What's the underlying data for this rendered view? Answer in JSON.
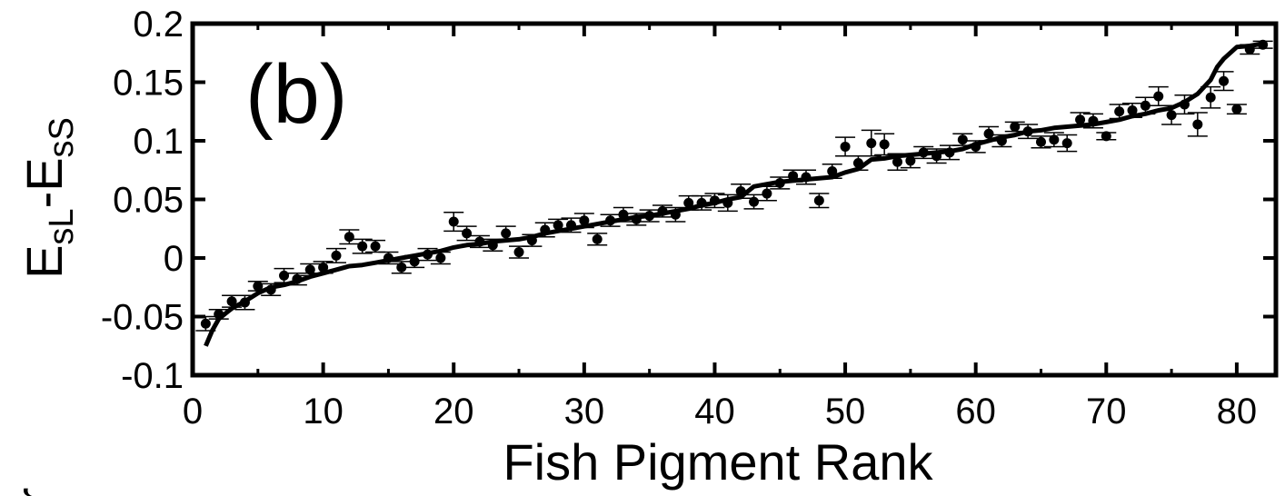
{
  "chart_data": {
    "type": "scatter",
    "panel_label": "(b)",
    "xlabel": "Fish Pigment Rank",
    "ylabel_main": "E",
    "ylabel_sub1": "sL",
    "ylabel_mid": "-E",
    "ylabel_sub2": "sS",
    "xlim": [
      0,
      83
    ],
    "ylim": [
      -0.1,
      0.2
    ],
    "xticks": [
      0,
      10,
      20,
      30,
      40,
      50,
      60,
      70,
      80
    ],
    "xtick_labels": [
      "0",
      "10",
      "20",
      "30",
      "40",
      "50",
      "60",
      "70",
      "80"
    ],
    "yticks": [
      -0.1,
      -0.05,
      0,
      0.05,
      0.1,
      0.15,
      0.2
    ],
    "ytick_labels": [
      "-0.1",
      "-0.05",
      "0",
      "0.05",
      "0.1",
      "0.15",
      "0.2"
    ],
    "grid": false,
    "series": [
      {
        "kind": "points-with-errorbars",
        "x": [
          1,
          2,
          3,
          4,
          5,
          6,
          7,
          8,
          9,
          10,
          11,
          12,
          13,
          14,
          15,
          16,
          17,
          18,
          19,
          20,
          21,
          22,
          23,
          24,
          25,
          26,
          27,
          28,
          29,
          30,
          31,
          32,
          33,
          34,
          35,
          36,
          37,
          38,
          39,
          40,
          41,
          42,
          43,
          44,
          45,
          46,
          47,
          48,
          49,
          50,
          51,
          52,
          53,
          54,
          55,
          56,
          57,
          58,
          59,
          60,
          61,
          62,
          63,
          64,
          65,
          66,
          67,
          68,
          69,
          70,
          71,
          72,
          73,
          74,
          75,
          76,
          77,
          78,
          79,
          80,
          81,
          82
        ],
        "y": [
          -0.056,
          -0.048,
          -0.037,
          -0.038,
          -0.024,
          -0.027,
          -0.015,
          -0.018,
          -0.01,
          -0.008,
          0.002,
          0.018,
          0.01,
          0.01,
          0.0,
          -0.008,
          -0.003,
          0.003,
          0.0,
          0.031,
          0.021,
          0.014,
          0.011,
          0.021,
          0.005,
          0.015,
          0.024,
          0.028,
          0.028,
          0.032,
          0.016,
          0.032,
          0.037,
          0.033,
          0.036,
          0.04,
          0.037,
          0.047,
          0.047,
          0.049,
          0.047,
          0.057,
          0.048,
          0.055,
          0.064,
          0.07,
          0.069,
          0.049,
          0.074,
          0.095,
          0.081,
          0.098,
          0.097,
          0.082,
          0.083,
          0.09,
          0.087,
          0.09,
          0.101,
          0.095,
          0.106,
          0.1,
          0.112,
          0.108,
          0.099,
          0.101,
          0.098,
          0.118,
          0.117,
          0.104,
          0.125,
          0.126,
          0.13,
          0.138,
          0.122,
          0.131,
          0.114,
          0.137,
          0.151,
          0.127,
          0.178,
          0.182
        ],
        "err": [
          0.006,
          0.004,
          0.005,
          0.006,
          0.004,
          0.005,
          0.006,
          0.005,
          0.005,
          0.005,
          0.006,
          0.006,
          0.006,
          0.005,
          0.005,
          0.005,
          0.005,
          0.005,
          0.005,
          0.008,
          0.006,
          0.005,
          0.005,
          0.006,
          0.005,
          0.005,
          0.006,
          0.005,
          0.006,
          0.006,
          0.005,
          0.005,
          0.006,
          0.005,
          0.005,
          0.005,
          0.006,
          0.006,
          0.006,
          0.006,
          0.007,
          0.006,
          0.006,
          0.006,
          0.005,
          0.005,
          0.006,
          0.006,
          0.006,
          0.008,
          0.006,
          0.011,
          0.009,
          0.007,
          0.006,
          0.005,
          0.006,
          0.006,
          0.005,
          0.005,
          0.006,
          0.005,
          0.004,
          0.006,
          0.005,
          0.006,
          0.007,
          0.006,
          0.006,
          0.003,
          0.006,
          0.006,
          0.007,
          0.008,
          0.008,
          0.008,
          0.01,
          0.009,
          0.008,
          0.004,
          0.004,
          0.003
        ]
      },
      {
        "kind": "line",
        "x": [
          1,
          1.5,
          2,
          3,
          4,
          5,
          6,
          7,
          8,
          9,
          10,
          11,
          12,
          13,
          14,
          15,
          16,
          17,
          18,
          19,
          20,
          21,
          22,
          23,
          24,
          25,
          26,
          27,
          28,
          29,
          30,
          31,
          32,
          33,
          34,
          35,
          36,
          37,
          38,
          39,
          40,
          41,
          42,
          43,
          44,
          45,
          46,
          47,
          48,
          49,
          50,
          51,
          52,
          53,
          54,
          55,
          56,
          57,
          58,
          59,
          60,
          61,
          62,
          63,
          64,
          65,
          66,
          67,
          68,
          69,
          70,
          71,
          72,
          73,
          74,
          75,
          76,
          77,
          78,
          78.5,
          79,
          80,
          81,
          82
        ],
        "y": [
          -0.075,
          -0.062,
          -0.052,
          -0.043,
          -0.037,
          -0.03,
          -0.025,
          -0.023,
          -0.02,
          -0.016,
          -0.013,
          -0.01,
          -0.007,
          -0.006,
          -0.004,
          -0.002,
          0.0,
          0.002,
          0.004,
          0.006,
          0.009,
          0.011,
          0.012,
          0.014,
          0.015,
          0.016,
          0.018,
          0.021,
          0.023,
          0.025,
          0.027,
          0.029,
          0.031,
          0.033,
          0.035,
          0.036,
          0.038,
          0.04,
          0.042,
          0.045,
          0.047,
          0.05,
          0.052,
          0.061,
          0.063,
          0.065,
          0.066,
          0.067,
          0.068,
          0.069,
          0.073,
          0.076,
          0.084,
          0.085,
          0.087,
          0.088,
          0.089,
          0.09,
          0.091,
          0.093,
          0.097,
          0.1,
          0.103,
          0.105,
          0.108,
          0.109,
          0.111,
          0.112,
          0.113,
          0.114,
          0.116,
          0.118,
          0.121,
          0.123,
          0.126,
          0.128,
          0.133,
          0.14,
          0.152,
          0.163,
          0.17,
          0.18,
          0.181,
          0.183
        ]
      }
    ]
  },
  "cropped_glyph": "r"
}
